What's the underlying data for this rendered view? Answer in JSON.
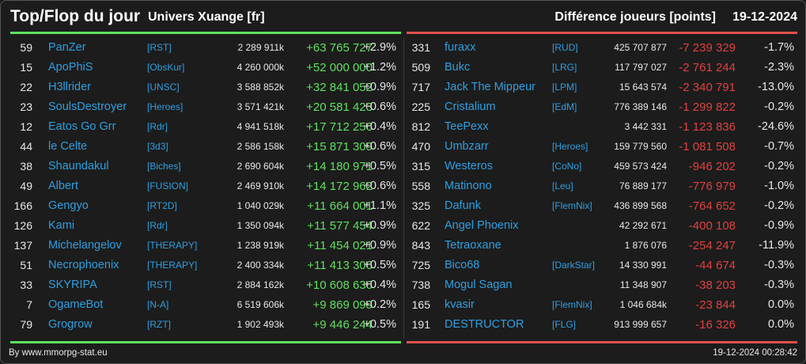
{
  "header": {
    "title": "Top/Flop du jour",
    "subtitle": "Univers Xuange [fr]",
    "metric": "Différence joueurs [points]",
    "date": "19-12-2024"
  },
  "colors": {
    "positive": "#5fe05f",
    "negative": "#e04040",
    "name": "#2f9fe0"
  },
  "top": [
    {
      "rank": "59",
      "name": "PanZer",
      "tag": "[RST]",
      "score": "2 289 911k",
      "diff": "+63 765 727",
      "pct": "+2.9%"
    },
    {
      "rank": "15",
      "name": "ApoPhiS",
      "tag": "[ObsKur]",
      "score": "4 260 000k",
      "diff": "+52 000 000",
      "pct": "+1.2%"
    },
    {
      "rank": "22",
      "name": "H3llrider",
      "tag": "[UNSC]",
      "score": "3 588 852k",
      "diff": "+32 841 052",
      "pct": "+0.9%"
    },
    {
      "rank": "23",
      "name": "SoulsDestroyer",
      "tag": "[Heroes]",
      "score": "3 571 421k",
      "diff": "+20 581 423",
      "pct": "+0.6%"
    },
    {
      "rank": "12",
      "name": "Eatos Go Grr",
      "tag": "[Rdr]",
      "score": "4 941 518k",
      "diff": "+17 712 256",
      "pct": "+0.4%"
    },
    {
      "rank": "44",
      "name": "le Celte",
      "tag": "[3d3]",
      "score": "2 586 158k",
      "diff": "+15 871 309",
      "pct": "+0.6%"
    },
    {
      "rank": "38",
      "name": "Shaundakul",
      "tag": "[Biches]",
      "score": "2 690 604k",
      "diff": "+14 180 971",
      "pct": "+0.5%"
    },
    {
      "rank": "49",
      "name": "Albert",
      "tag": "[FUSION]",
      "score": "2 469 910k",
      "diff": "+14 172 962",
      "pct": "+0.6%"
    },
    {
      "rank": "166",
      "name": "Gengyo",
      "tag": "[RT2D]",
      "score": "1 040 029k",
      "diff": "+11 664 001",
      "pct": "+1.1%"
    },
    {
      "rank": "126",
      "name": "Kami",
      "tag": "[Rdr]",
      "score": "1 350 094k",
      "diff": "+11 577 454",
      "pct": "+0.9%"
    },
    {
      "rank": "137",
      "name": "Michelangelov",
      "tag": "[THERAPY]",
      "score": "1 238 919k",
      "diff": "+11 454 021",
      "pct": "+0.9%"
    },
    {
      "rank": "51",
      "name": "Necrophoenix",
      "tag": "[THERAPY]",
      "score": "2 400 334k",
      "diff": "+11 413 306",
      "pct": "+0.5%"
    },
    {
      "rank": "33",
      "name": "SKYRIPA",
      "tag": "[RST]",
      "score": "2 884 162k",
      "diff": "+10 608 636",
      "pct": "+0.4%"
    },
    {
      "rank": "7",
      "name": "OgameBot",
      "tag": "[N-A]",
      "score": "6 519 606k",
      "diff": "+9 869 099",
      "pct": "+0.2%"
    },
    {
      "rank": "79",
      "name": "Grogrow",
      "tag": "[RZT]",
      "score": "1 902 493k",
      "diff": "+9 446 244",
      "pct": "+0.5%"
    }
  ],
  "flop": [
    {
      "rank": "331",
      "name": "furaxx",
      "tag": "[RUD]",
      "score": "425 707 877",
      "diff": "-7 239 329",
      "pct": "-1.7%"
    },
    {
      "rank": "509",
      "name": "Bukc",
      "tag": "[LRG]",
      "score": "117 797 027",
      "diff": "-2 761 244",
      "pct": "-2.3%"
    },
    {
      "rank": "717",
      "name": "Jack The Mippeur",
      "tag": "[LPM]",
      "score": "15 643 574",
      "diff": "-2 340 791",
      "pct": "-13.0%"
    },
    {
      "rank": "225",
      "name": "Cristalium",
      "tag": "[EdM]",
      "score": "776 389 146",
      "diff": "-1 299 822",
      "pct": "-0.2%"
    },
    {
      "rank": "812",
      "name": "TeePexx",
      "tag": "",
      "score": "3 442 331",
      "diff": "-1 123 836",
      "pct": "-24.6%"
    },
    {
      "rank": "470",
      "name": "Umbzarr",
      "tag": "[Heroes]",
      "score": "159 779 560",
      "diff": "-1 081 508",
      "pct": "-0.7%"
    },
    {
      "rank": "315",
      "name": "Westeros",
      "tag": "[CoNo]",
      "score": "459 573 424",
      "diff": "-946 202",
      "pct": "-0.2%"
    },
    {
      "rank": "558",
      "name": "Matinono",
      "tag": "[Leu]",
      "score": "76 889 177",
      "diff": "-776 979",
      "pct": "-1.0%"
    },
    {
      "rank": "325",
      "name": "Dafunk",
      "tag": "[FlemNix]",
      "score": "436 899 568",
      "diff": "-764 652",
      "pct": "-0.2%"
    },
    {
      "rank": "622",
      "name": "Angel Phoenix",
      "tag": "",
      "score": "42 292 671",
      "diff": "-400 108",
      "pct": "-0.9%"
    },
    {
      "rank": "843",
      "name": "Tetraoxane",
      "tag": "",
      "score": "1 876 076",
      "diff": "-254 247",
      "pct": "-11.9%"
    },
    {
      "rank": "725",
      "name": "Bico68",
      "tag": "[DarkStar]",
      "score": "14 330 991",
      "diff": "-44 674",
      "pct": "-0.3%"
    },
    {
      "rank": "738",
      "name": "Mogul Sagan",
      "tag": "",
      "score": "11 348 907",
      "diff": "-38 203",
      "pct": "-0.3%"
    },
    {
      "rank": "165",
      "name": "kvasir",
      "tag": "[FlemNix]",
      "score": "1 046 684k",
      "diff": "-23 844",
      "pct": "0.0%"
    },
    {
      "rank": "191",
      "name": "DESTRUCTOR",
      "tag": "[FLG]",
      "score": "913 999 657",
      "diff": "-16 326",
      "pct": "0.0%"
    }
  ],
  "footer": {
    "source": "By www.mmorpg-stat.eu",
    "timestamp": "19-12-2024 00:28:42"
  }
}
